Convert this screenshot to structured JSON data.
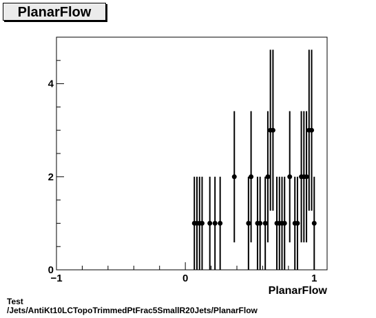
{
  "chart_data": {
    "type": "scatter",
    "title": "PlanarFlow",
    "xlabel": "PlanarFlow",
    "ylabel": "",
    "xlim": [
      -1,
      1.1
    ],
    "ylim": [
      0,
      5
    ],
    "x_ticks": [
      -1,
      0,
      1
    ],
    "y_ticks": [
      0,
      2,
      4
    ],
    "grid": false,
    "series": [
      {
        "points": [
          {
            "x": 0.07,
            "y": 1,
            "err": 1
          },
          {
            "x": 0.09,
            "y": 1,
            "err": 1
          },
          {
            "x": 0.11,
            "y": 1,
            "err": 1
          },
          {
            "x": 0.13,
            "y": 1,
            "err": 1
          },
          {
            "x": 0.19,
            "y": 1,
            "err": 1
          },
          {
            "x": 0.23,
            "y": 1,
            "err": 1
          },
          {
            "x": 0.27,
            "y": 1,
            "err": 1
          },
          {
            "x": 0.38,
            "y": 2,
            "err": 1.41
          },
          {
            "x": 0.49,
            "y": 1,
            "err": 1
          },
          {
            "x": 0.51,
            "y": 2,
            "err": 1.41
          },
          {
            "x": 0.56,
            "y": 1,
            "err": 1
          },
          {
            "x": 0.58,
            "y": 1,
            "err": 1
          },
          {
            "x": 0.62,
            "y": 1,
            "err": 1
          },
          {
            "x": 0.64,
            "y": 2,
            "err": 1.41
          },
          {
            "x": 0.66,
            "y": 3,
            "err": 1.73
          },
          {
            "x": 0.68,
            "y": 3,
            "err": 1.73
          },
          {
            "x": 0.71,
            "y": 1,
            "err": 1
          },
          {
            "x": 0.73,
            "y": 1,
            "err": 1
          },
          {
            "x": 0.75,
            "y": 1,
            "err": 1
          },
          {
            "x": 0.77,
            "y": 1,
            "err": 1
          },
          {
            "x": 0.81,
            "y": 2,
            "err": 1.41
          },
          {
            "x": 0.85,
            "y": 1,
            "err": 1
          },
          {
            "x": 0.87,
            "y": 1,
            "err": 1
          },
          {
            "x": 0.9,
            "y": 2,
            "err": 1.41
          },
          {
            "x": 0.92,
            "y": 2,
            "err": 1.41
          },
          {
            "x": 0.94,
            "y": 2,
            "err": 1.41
          },
          {
            "x": 0.96,
            "y": 3,
            "err": 1.73
          },
          {
            "x": 0.98,
            "y": 3,
            "err": 1.73
          },
          {
            "x": 1.0,
            "y": 1,
            "err": 1
          }
        ]
      }
    ],
    "tick_labels": {
      "x": [
        "−1",
        "0",
        "1"
      ],
      "y": [
        "0",
        "2",
        "4"
      ]
    }
  },
  "footer": {
    "line1": "Test",
    "line2": "/Jets/AntiKt10LCTopoTrimmedPtFrac5SmallR20Jets/PlanarFlow"
  }
}
